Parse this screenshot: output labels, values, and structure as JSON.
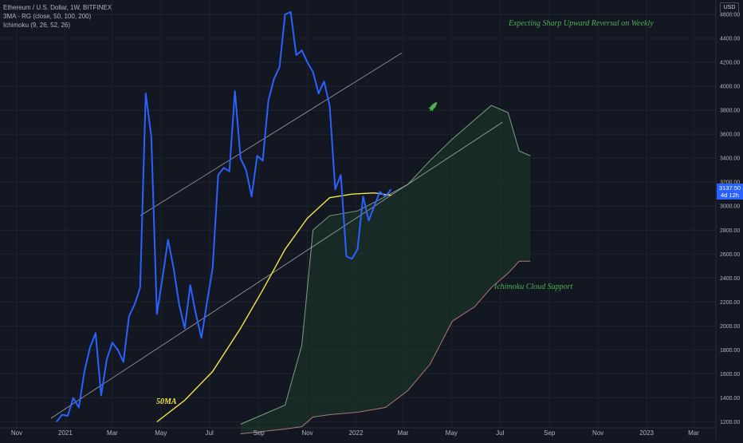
{
  "legend": {
    "symbol": "Ethereum / U.S. Dollar, 1W, BITFINEX",
    "ma": "3MA - RG (close, 50, 100, 200)",
    "ichimoku": "Ichimoku (9, 26, 52, 26)"
  },
  "currency": "USD",
  "price_tag": {
    "price": "3137.50",
    "countdown": "4d 12h"
  },
  "colors": {
    "background": "#131722",
    "price_line": "#2962ff",
    "ma50": "#f5e642",
    "cloud_fill": "#1e3a2a",
    "senkou_a": "#a5d6a7",
    "senkou_b": "#ef9a9a",
    "annotation": "#4caf50",
    "trendline": "#c0c4cc"
  },
  "annotations": {
    "reversal": "Expecting Sharp Upward Reversal on Weekly",
    "cloud": "Ichimoku Cloud Support",
    "ma": "50MA"
  },
  "chart_data": {
    "type": "line",
    "title": "",
    "xlabel": "",
    "ylabel": "",
    "ylim": [
      1150,
      4720
    ],
    "x_ticks": [
      "Nov",
      "2021",
      "Mar",
      "May",
      "Jul",
      "Sep",
      "Nov",
      "2022",
      "Mar",
      "May",
      "Jul",
      "Sep",
      "Nov",
      "2023",
      "Mar"
    ],
    "y_ticks": [
      1200,
      1400,
      1600,
      1800,
      2000,
      2200,
      2400,
      2600,
      2800,
      3000,
      3200,
      3400,
      3600,
      3800,
      4000,
      4200,
      4400,
      4600
    ],
    "y_tick_labels": [
      "1200.00",
      "1400.00",
      "1600.00",
      "1800.00",
      "2000.00",
      "2200.00",
      "2400.00",
      "2600.00",
      "2800.00",
      "3000.00",
      "3200.00",
      "3400.00",
      "3600.00",
      "3800.00",
      "4000.00",
      "4200.00",
      "4400.00",
      "4600.00"
    ],
    "tick_dates": [
      "2020-11-01",
      "2021-01-01",
      "2021-03-01",
      "2021-05-01",
      "2021-07-01",
      "2021-09-01",
      "2021-11-01",
      "2022-01-01",
      "2022-03-01",
      "2022-05-01",
      "2022-07-01",
      "2022-09-01",
      "2022-11-01",
      "2023-01-01",
      "2023-03-01"
    ],
    "x_range": [
      "2020-10-11",
      "2023-03-29"
    ],
    "series": [
      {
        "key": "price",
        "x": [
          "2020-12-21",
          "2020-12-28",
          "2021-01-04",
          "2021-01-11",
          "2021-01-18",
          "2021-01-25",
          "2021-02-01",
          "2021-02-08",
          "2021-02-15",
          "2021-02-22",
          "2021-03-01",
          "2021-03-08",
          "2021-03-15",
          "2021-03-22",
          "2021-03-29",
          "2021-04-05",
          "2021-04-12",
          "2021-04-19",
          "2021-04-26",
          "2021-05-03",
          "2021-05-10",
          "2021-05-17",
          "2021-05-24",
          "2021-05-31",
          "2021-06-07",
          "2021-06-14",
          "2021-06-21",
          "2021-06-28",
          "2021-07-05",
          "2021-07-12",
          "2021-07-19",
          "2021-07-26",
          "2021-08-02",
          "2021-08-09",
          "2021-08-16",
          "2021-08-23",
          "2021-08-30",
          "2021-09-06",
          "2021-09-13",
          "2021-09-20",
          "2021-09-27",
          "2021-10-04",
          "2021-10-11",
          "2021-10-18",
          "2021-10-25",
          "2021-11-01",
          "2021-11-08",
          "2021-11-15",
          "2021-11-22",
          "2021-11-29",
          "2021-12-06",
          "2021-12-13",
          "2021-12-20",
          "2021-12-27",
          "2022-01-03",
          "2022-01-10",
          "2022-01-17",
          "2022-01-24",
          "2022-01-31",
          "2022-02-07",
          "2022-02-14"
        ],
        "y": [
          1200,
          1260,
          1250,
          1400,
          1320,
          1620,
          1820,
          1940,
          1420,
          1720,
          1860,
          1800,
          1700,
          2080,
          2180,
          2320,
          3940,
          3580,
          2100,
          2400,
          2720,
          2480,
          2180,
          1980,
          2340,
          2100,
          1900,
          2200,
          2480,
          3260,
          3320,
          3290,
          3960,
          3400,
          3300,
          3080,
          3420,
          3380,
          3880,
          4060,
          4160,
          4600,
          4620,
          4260,
          4300,
          4200,
          4120,
          3940,
          4040,
          3840,
          3140,
          3260,
          2580,
          2560,
          2640,
          3080,
          2880,
          3000,
          3120,
          3080,
          3140
        ]
      },
      {
        "key": "ma50",
        "name": "50MA",
        "x": [
          "2021-04-26",
          "2021-05-31",
          "2021-07-05",
          "2021-08-09",
          "2021-09-06",
          "2021-10-04",
          "2021-11-01",
          "2021-11-29",
          "2021-12-27",
          "2022-01-24",
          "2022-02-14"
        ],
        "y": [
          1200,
          1380,
          1620,
          1980,
          2300,
          2640,
          2900,
          3070,
          3100,
          3110,
          3090
        ]
      },
      {
        "key": "senkou_a",
        "x": [
          "2021-08-09",
          "2021-09-06",
          "2021-10-04",
          "2021-10-25",
          "2021-11-08",
          "2021-11-29",
          "2022-01-03",
          "2022-02-07",
          "2022-03-07",
          "2022-04-04",
          "2022-05-02",
          "2022-05-30",
          "2022-06-20",
          "2022-07-11",
          "2022-07-25",
          "2022-08-08"
        ],
        "y": [
          1180,
          1260,
          1340,
          1840,
          2800,
          2920,
          2960,
          3080,
          3180,
          3380,
          3560,
          3720,
          3840,
          3780,
          3460,
          3420
        ]
      },
      {
        "key": "senkou_b",
        "x": [
          "2021-08-09",
          "2021-09-06",
          "2021-10-04",
          "2021-10-25",
          "2021-11-08",
          "2021-11-29",
          "2022-01-03",
          "2022-02-07",
          "2022-03-07",
          "2022-04-04",
          "2022-05-02",
          "2022-05-30",
          "2022-06-20",
          "2022-07-11",
          "2022-07-25",
          "2022-08-08"
        ],
        "y": [
          1100,
          1120,
          1140,
          1160,
          1240,
          1260,
          1280,
          1320,
          1460,
          1680,
          2040,
          2160,
          2320,
          2440,
          2540,
          2540
        ]
      }
    ],
    "trendlines": [
      {
        "x": [
          "2021-04-05",
          "2022-02-28"
        ],
        "y": [
          2920,
          4280
        ]
      },
      {
        "x": [
          "2020-12-14",
          "2022-07-04"
        ],
        "y": [
          1230,
          3700
        ]
      }
    ]
  }
}
